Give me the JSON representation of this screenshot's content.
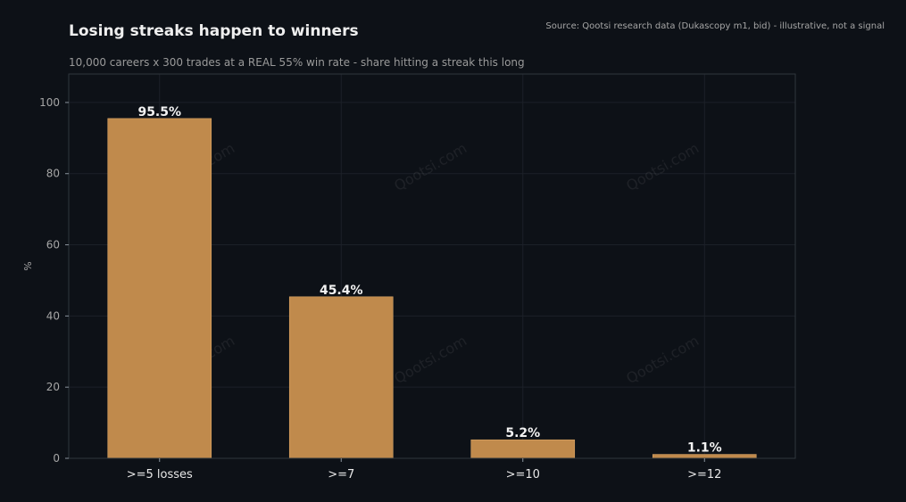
{
  "header": {
    "title": "Losing streaks happen to winners",
    "subtitle": "10,000 careers x 300 trades at a REAL 55% win rate - share hitting a streak this long",
    "source": "Source: Qootsi research data (Dukascopy m1, bid) - illustrative, not a signal"
  },
  "watermark": "Qootsi.com",
  "colors": {
    "background": "#0d1117",
    "bar": "#c08a4c",
    "bar_edge": "#d9a566",
    "grid": "#1c2128",
    "axis_frame": "#30363d"
  },
  "chart_data": {
    "type": "bar",
    "title": "Losing streaks happen to winners",
    "subtitle": "10,000 careers x 300 trades at a REAL 55% win rate - share hitting a streak this long",
    "xlabel": "",
    "ylabel": "%",
    "categories": [
      ">=5 losses",
      ">=7",
      ">=10",
      ">=12"
    ],
    "values": [
      95.5,
      45.4,
      5.2,
      1.1
    ],
    "data_labels": [
      "95.5%",
      "45.4%",
      "5.2%",
      "1.1%"
    ],
    "ylim": [
      0,
      108
    ],
    "yticks": [
      0,
      20,
      40,
      60,
      80,
      100
    ],
    "grid": true,
    "legend": "none"
  }
}
